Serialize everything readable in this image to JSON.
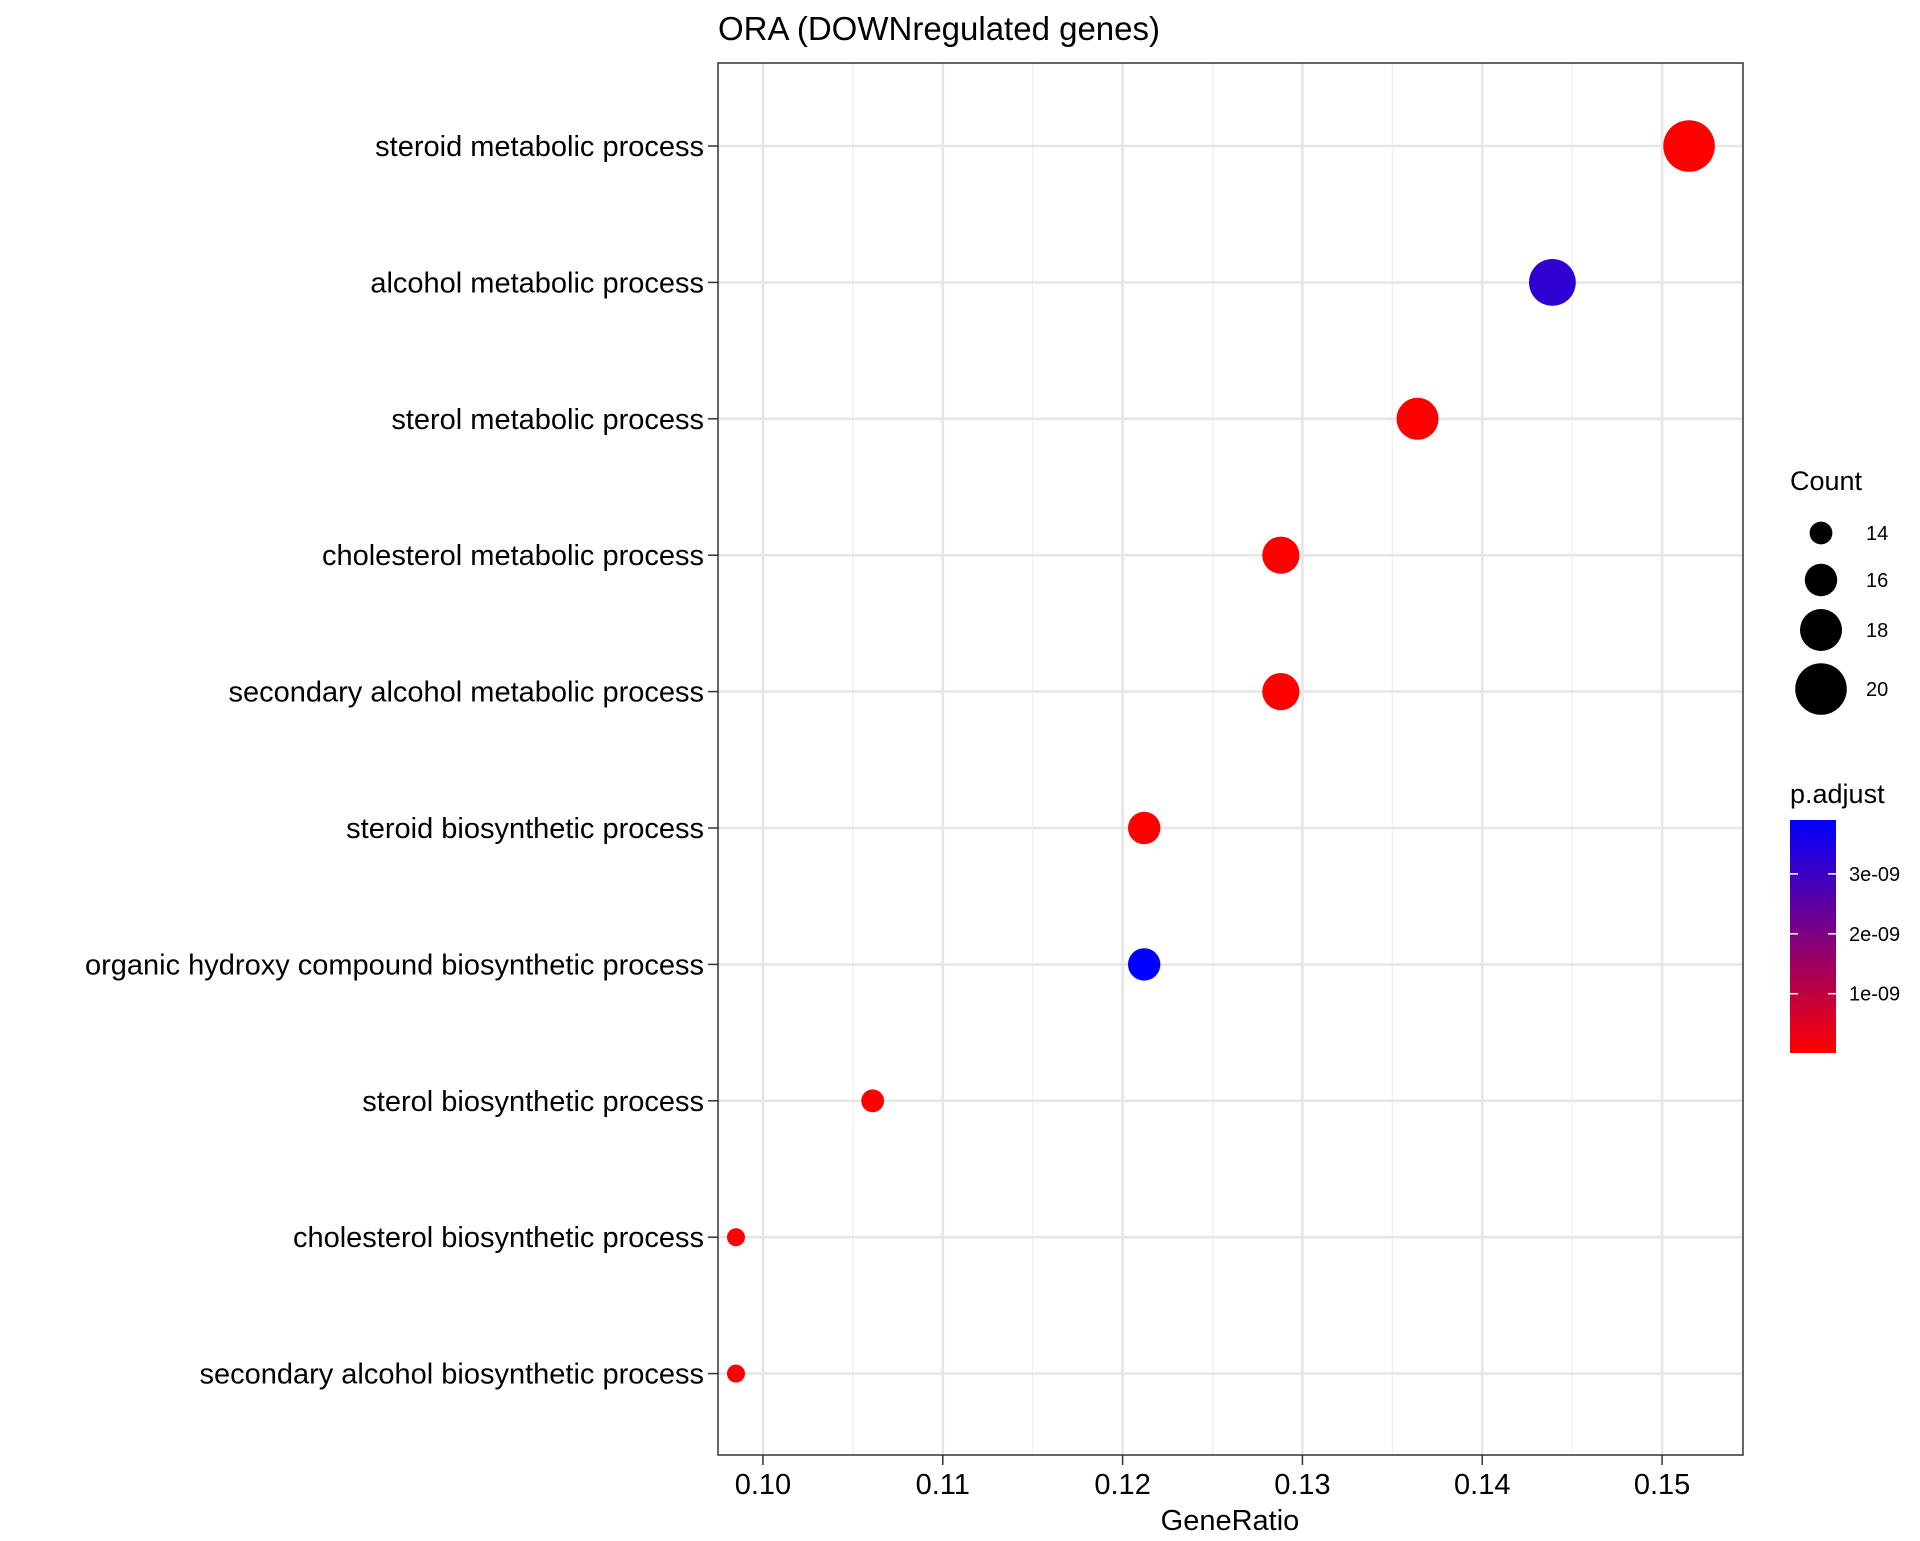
{
  "chart_data": {
    "type": "scatter",
    "title": "ORA (DOWNregulated genes)",
    "xlabel": "GeneRatio",
    "ylabel": "",
    "xlim": [
      0.0975,
      0.1545
    ],
    "xticks": [
      0.1,
      0.11,
      0.12,
      0.13,
      0.14,
      0.15
    ],
    "xtick_labels": [
      "0.10",
      "0.11",
      "0.12",
      "0.13",
      "0.14",
      "0.15"
    ],
    "grid": true,
    "categories": [
      "steroid metabolic process",
      "alcohol metabolic process",
      "sterol metabolic process",
      "cholesterol metabolic process",
      "secondary alcohol metabolic process",
      "steroid biosynthetic process",
      "organic hydroxy compound biosynthetic process",
      "sterol biosynthetic process",
      "cholesterol biosynthetic process",
      "secondary alcohol biosynthetic process"
    ],
    "gene_ratio": [
      0.1515,
      0.1439,
      0.1364,
      0.1288,
      0.1288,
      0.1212,
      0.1212,
      0.1061,
      0.0985,
      0.0985
    ],
    "count": [
      20,
      19,
      18,
      17,
      17,
      16,
      16,
      14,
      13,
      13
    ],
    "p_adjust": [
      1e-11,
      3.2e-09,
      1e-11,
      1e-11,
      1e-11,
      1e-11,
      3.9e-09,
      2e-11,
      1e-11,
      1e-11
    ],
    "size_legend": {
      "title": "Count",
      "values": [
        14,
        16,
        18,
        20
      ],
      "labels": [
        "14",
        "16",
        "18",
        "20"
      ]
    },
    "color_legend": {
      "title": "p.adjust",
      "range": [
        1e-11,
        3.9e-09
      ],
      "ticks": [
        1e-09,
        2e-09,
        3e-09
      ],
      "tick_labels": [
        "1e-09",
        "2e-09",
        "3e-09"
      ],
      "low_color": "#FF0000",
      "high_color": "#0000FF"
    },
    "legend_position": "right"
  }
}
